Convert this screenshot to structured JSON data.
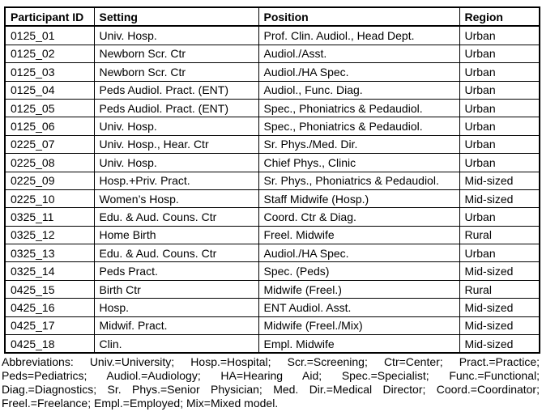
{
  "table": {
    "columns": [
      "Participant ID",
      "Setting",
      "Position",
      "Region"
    ],
    "rows": [
      [
        "0125_01",
        "Univ. Hosp.",
        "Prof. Clin. Audiol., Head Dept.",
        "Urban"
      ],
      [
        "0125_02",
        "Newborn Scr. Ctr",
        "Audiol./Asst.",
        "Urban"
      ],
      [
        "0125_03",
        "Newborn Scr. Ctr",
        "Audiol./HA Spec.",
        "Urban"
      ],
      [
        "0125_04",
        "Peds Audiol. Pract. (ENT)",
        "Audiol., Func. Diag.",
        "Urban"
      ],
      [
        "0125_05",
        "Peds Audiol. Pract. (ENT)",
        "Spec., Phoniatrics & Pedaudiol.",
        "Urban"
      ],
      [
        "0125_06",
        "Univ. Hosp.",
        "Spec., Phoniatrics & Pedaudiol.",
        "Urban"
      ],
      [
        "0225_07",
        "Univ. Hosp., Hear. Ctr",
        "Sr. Phys./Med. Dir.",
        "Urban"
      ],
      [
        "0225_08",
        "Univ. Hosp.",
        "Chief Phys., Clinic",
        "Urban"
      ],
      [
        "0225_09",
        "Hosp.+Priv. Pract.",
        "Sr. Phys., Phoniatrics & Pedaudiol.",
        "Mid-sized"
      ],
      [
        "0225_10",
        "Women’s Hosp.",
        "Staff Midwife (Hosp.)",
        "Mid-sized"
      ],
      [
        "0325_11",
        "Edu. & Aud. Couns. Ctr",
        "Coord. Ctr & Diag.",
        "Urban"
      ],
      [
        "0325_12",
        "Home Birth",
        "Freel. Midwife",
        "Rural"
      ],
      [
        "0325_13",
        "Edu. & Aud. Couns. Ctr",
        "Audiol./HA Spec.",
        "Urban"
      ],
      [
        "0325_14",
        "Peds Pract.",
        "Spec. (Peds)",
        "Mid-sized"
      ],
      [
        "0425_15",
        "Birth Ctr",
        "Midwife (Freel.)",
        "Rural"
      ],
      [
        "0425_16",
        "Hosp.",
        "ENT Audiol. Asst.",
        "Mid-sized"
      ],
      [
        "0425_17",
        "Midwif. Pract.",
        "Midwife (Freel./Mix)",
        "Mid-sized"
      ],
      [
        "0425_18",
        "Clin.",
        "Empl. Midwife",
        "Mid-sized"
      ]
    ]
  },
  "footnote": {
    "lines": [
      "Abbreviations: Univ.=University; Hosp.=Hospital; Scr.=Screening; Ctr=Center; Pract.=Practice;",
      "Peds=Pediatrics; Audiol.=Audiology; HA=Hearing Aid; Spec.=Specialist; Func.=Functional;",
      "Diag.=Diagnostics; Sr. Phys.=Senior Physician; Med. Dir.=Medical Director; Coord.=Coordinator;",
      "Freel.=Freelance; Empl.=Employed; Mix=Mixed model."
    ],
    "full_text": "Abbreviations: Univ.=University; Hosp.=Hospital; Scr.=Screening; Ctr=Center; Pract.=Practice; Peds=Pediatrics; Audiol.=Audiology; HA=Hearing Aid; Spec.=Specialist; Func.=Functional; Diag.=Diagnostics; Sr. Phys.=Senior Physician; Med. Dir.=Medical Director; Coord.=Coordinator; Freel.=Freelance; Empl.=Employed; Mix=Mixed model."
  },
  "colors": {
    "text": "#000000",
    "border": "#000000",
    "background": "#ffffff"
  }
}
